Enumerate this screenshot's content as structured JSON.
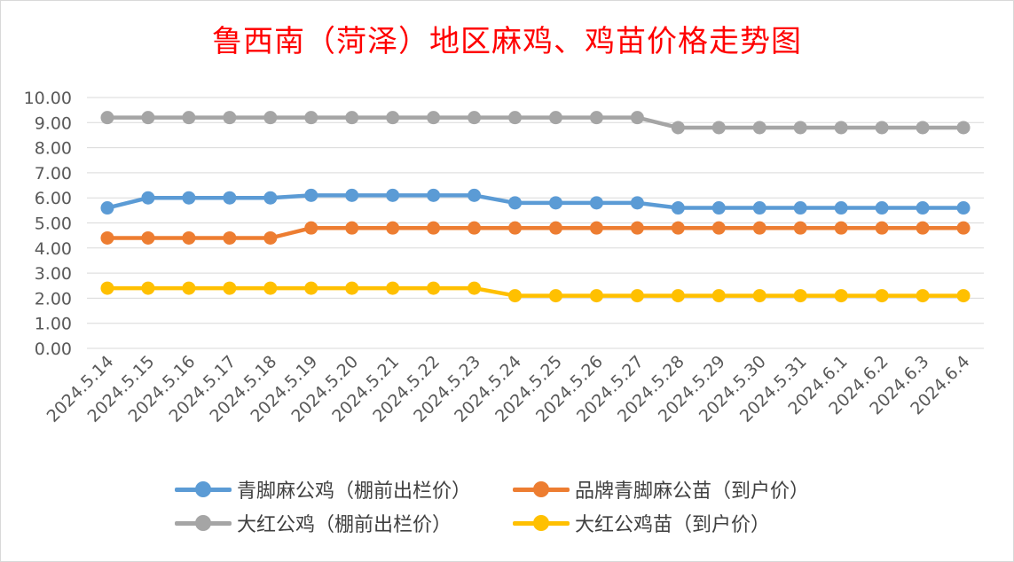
{
  "chart_data": {
    "type": "line",
    "title": "鲁西南（菏泽）地区麻鸡、鸡苗价格走势图",
    "categories": [
      "2024.5.14",
      "2024.5.15",
      "2024.5.16",
      "2024.5.17",
      "2024.5.18",
      "2024.5.19",
      "2024.5.20",
      "2024.5.21",
      "2024.5.22",
      "2024.5.23",
      "2024.5.24",
      "2024.5.25",
      "2024.5.26",
      "2024.5.27",
      "2024.5.28",
      "2024.5.29",
      "2024.5.30",
      "2024.5.31",
      "2024.6.1",
      "2024.6.2",
      "2024.6.3",
      "2024.6.4"
    ],
    "ylim": [
      0,
      10
    ],
    "yticks": [
      "0.00",
      "1.00",
      "2.00",
      "3.00",
      "4.00",
      "5.00",
      "6.00",
      "7.00",
      "8.00",
      "9.00",
      "10.00"
    ],
    "grid": true,
    "legend_position": "bottom",
    "series": [
      {
        "name": "青脚麻公鸡（棚前出栏价）",
        "color": "#5b9bd5",
        "values": [
          5.6,
          6.0,
          6.0,
          6.0,
          6.0,
          6.1,
          6.1,
          6.1,
          6.1,
          6.1,
          5.8,
          5.8,
          5.8,
          5.8,
          5.6,
          5.6,
          5.6,
          5.6,
          5.6,
          5.6,
          5.6,
          5.6
        ]
      },
      {
        "name": "品牌青脚麻公苗（到户价）",
        "color": "#ed7d31",
        "values": [
          4.4,
          4.4,
          4.4,
          4.4,
          4.4,
          4.8,
          4.8,
          4.8,
          4.8,
          4.8,
          4.8,
          4.8,
          4.8,
          4.8,
          4.8,
          4.8,
          4.8,
          4.8,
          4.8,
          4.8,
          4.8,
          4.8
        ]
      },
      {
        "name": "大红公鸡（棚前出栏价）",
        "color": "#a5a5a5",
        "values": [
          9.2,
          9.2,
          9.2,
          9.2,
          9.2,
          9.2,
          9.2,
          9.2,
          9.2,
          9.2,
          9.2,
          9.2,
          9.2,
          9.2,
          8.8,
          8.8,
          8.8,
          8.8,
          8.8,
          8.8,
          8.8,
          8.8
        ]
      },
      {
        "name": "大红公鸡苗（到户价）",
        "color": "#ffc000",
        "values": [
          2.4,
          2.4,
          2.4,
          2.4,
          2.4,
          2.4,
          2.4,
          2.4,
          2.4,
          2.4,
          2.1,
          2.1,
          2.1,
          2.1,
          2.1,
          2.1,
          2.1,
          2.1,
          2.1,
          2.1,
          2.1,
          2.1
        ]
      }
    ]
  }
}
